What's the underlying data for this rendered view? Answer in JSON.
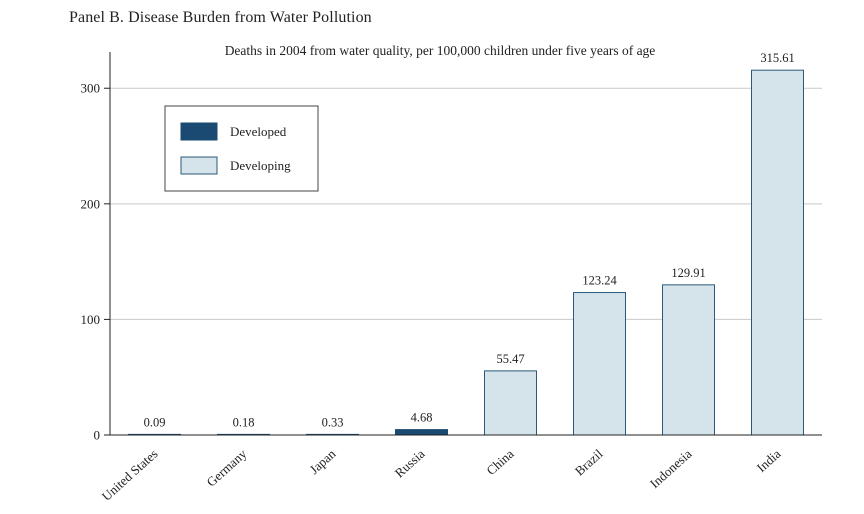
{
  "panel_title": "Panel B. Disease Burden from Water Pollution",
  "chart_data": {
    "type": "bar",
    "title": "",
    "subtitle": "Deaths in 2004 from water quality, per 100,000 children under five years of age",
    "xlabel": "",
    "ylabel": "",
    "ylim": [
      0,
      340
    ],
    "yticks": [
      0,
      100,
      200,
      300
    ],
    "ytick_labels": [
      "0",
      "100",
      "200",
      "300"
    ],
    "grid": true,
    "legend_position": "top-left",
    "categories": [
      "United States",
      "Germany",
      "Japan",
      "Russia",
      "China",
      "Brazil",
      "Indonesia",
      "India"
    ],
    "values": [
      0.09,
      0.18,
      0.33,
      4.68,
      55.47,
      123.24,
      129.91,
      315.61
    ],
    "value_labels": [
      "0.09",
      "0.18",
      "0.33",
      "4.68",
      "55.47",
      "123.24",
      "129.91",
      "315.61"
    ],
    "groups": [
      "developed",
      "developed",
      "developed",
      "developed",
      "developing",
      "developing",
      "developing",
      "developing"
    ],
    "legend": [
      {
        "key": "developed",
        "label": "Developed",
        "color": "#1a4a72"
      },
      {
        "key": "developing",
        "label": "Developing",
        "color": "#d5e3ea"
      }
    ],
    "colors": {
      "developed": "#1a4a72",
      "developing": "#d5e3ea",
      "bar_edge": "#2b5a7a",
      "grid": "#c9c9c9",
      "axis": "#222222"
    }
  }
}
